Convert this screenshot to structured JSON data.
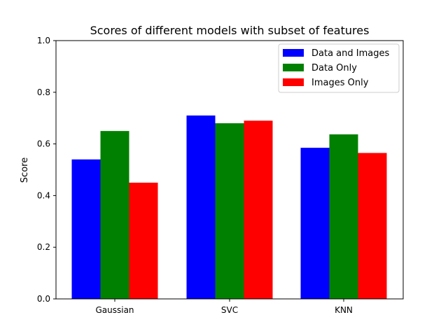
{
  "chart_data": {
    "type": "bar",
    "title": "Scores of different models with subset of features",
    "xlabel": "",
    "ylabel": "Score",
    "ylim": [
      0,
      1.0
    ],
    "yticks": [
      "0.0",
      "0.2",
      "0.4",
      "0.6",
      "0.8",
      "1.0"
    ],
    "categories": [
      "Gaussian",
      "SVC",
      "KNN"
    ],
    "series": [
      {
        "name": "Data and Images",
        "color": "#0000ff",
        "values": [
          0.54,
          0.71,
          0.585
        ]
      },
      {
        "name": "Data Only",
        "color": "#008000",
        "values": [
          0.65,
          0.68,
          0.637
        ]
      },
      {
        "name": "Images Only",
        "color": "#ff0000",
        "values": [
          0.45,
          0.69,
          0.565
        ]
      }
    ],
    "legend_position": "top-right",
    "grid": false
  }
}
